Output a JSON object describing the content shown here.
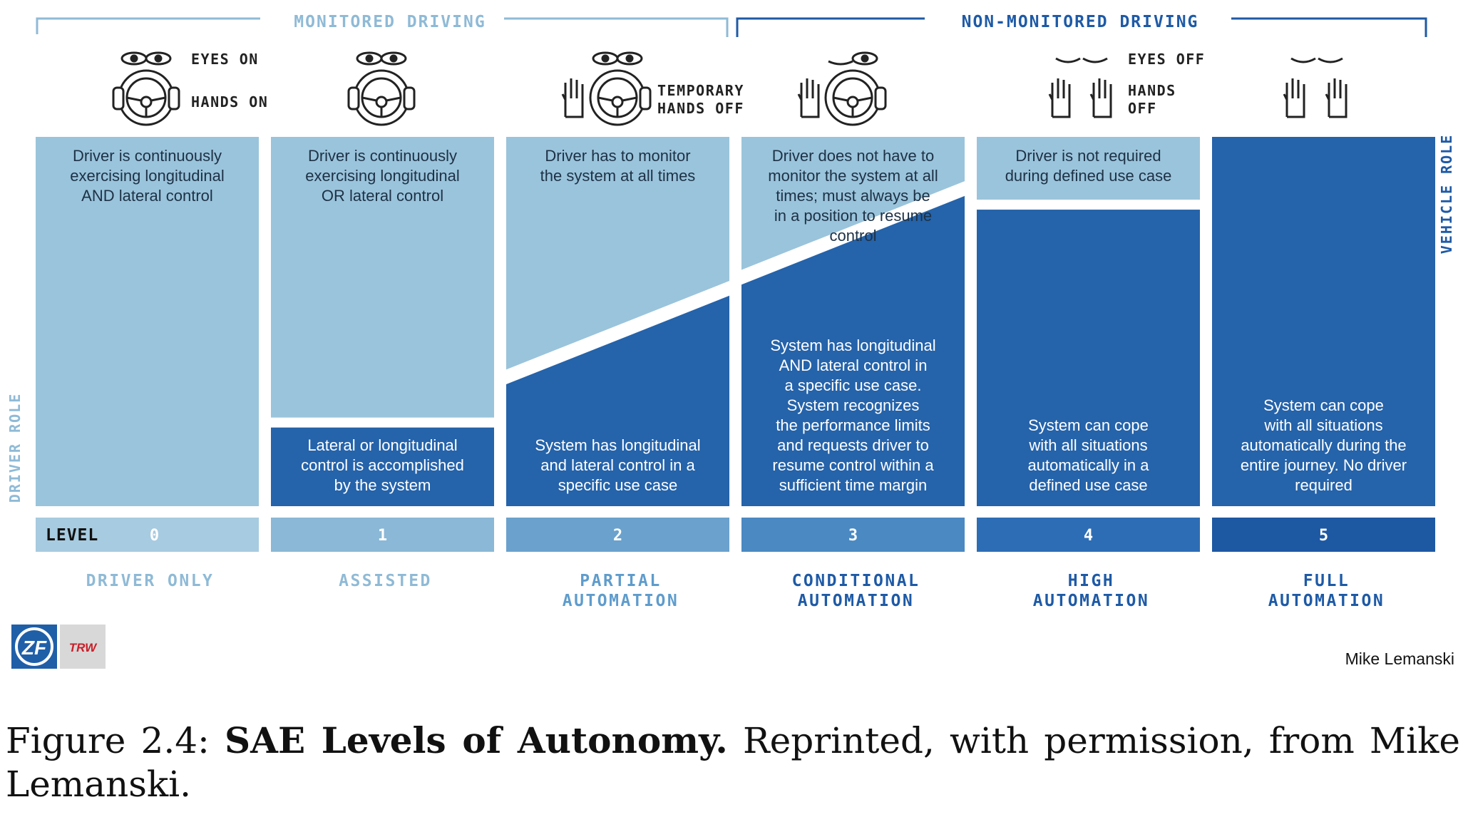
{
  "header": {
    "monitored": "MONITORED DRIVING",
    "non_monitored": "NON-MONITORED DRIVING"
  },
  "icon_labels": {
    "eyes_on": "EYES ON",
    "hands_on": "HANDS ON",
    "temporary_1": "TEMPORARY",
    "temporary_2": "HANDS OFF",
    "eyes_off": "EYES OFF",
    "hands_off_1": "HANDS",
    "hands_off_2": "OFF"
  },
  "side_labels": {
    "driver_role": "DRIVER ROLE",
    "vehicle_role": "VEHICLE ROLE"
  },
  "level_label": "LEVEL",
  "levels": [
    {
      "number": "0",
      "name": [
        "DRIVER ONLY"
      ],
      "driver_text": [
        "Driver is continuously",
        "exercising longitudinal",
        "AND lateral control"
      ],
      "system_text": [],
      "driver_share": 1.0
    },
    {
      "number": "1",
      "name": [
        "ASSISTED"
      ],
      "driver_text": [
        "Driver is continuously",
        "exercising longitudinal",
        "OR lateral control"
      ],
      "system_text": [
        "Lateral or longitudinal",
        "control is accomplished",
        "by the system"
      ],
      "driver_share": 0.76
    },
    {
      "number": "2",
      "name": [
        "PARTIAL",
        "AUTOMATION"
      ],
      "driver_text": [
        "Driver has to monitor",
        "the system at all times"
      ],
      "system_text": [
        "System has longitudinal",
        "and lateral control in a",
        "specific use case"
      ],
      "driver_share": 0.76
    },
    {
      "number": "3",
      "name": [
        "CONDITIONAL",
        "AUTOMATION"
      ],
      "driver_text": [
        "Driver does not have to",
        "monitor the system at all",
        "times; must always be",
        "in a position to resume",
        "control"
      ],
      "system_text": [
        "System has longitudinal",
        "AND lateral control in",
        "a specific use case.",
        "System recognizes",
        "the performance limits",
        "and requests driver to",
        "resume control within a",
        "sufficient time margin"
      ],
      "driver_share": 0.5
    },
    {
      "number": "4",
      "name": [
        "HIGH",
        "AUTOMATION"
      ],
      "driver_text": [
        "Driver is not required",
        "during defined use case"
      ],
      "system_text": [
        "System can cope",
        "with all situations",
        "automatically in a",
        "defined use case"
      ],
      "driver_share": 0.24
    },
    {
      "number": "5",
      "name": [
        "FULL",
        "AUTOMATION"
      ],
      "driver_text": [],
      "system_text": [
        "System can cope",
        "with all situations",
        "automatically during the",
        "entire journey. No driver",
        "required"
      ],
      "driver_share": 0.0
    }
  ],
  "logos": {
    "zf": "ZF",
    "trw": "TRW"
  },
  "credit": "Mike Lemanski",
  "caption": {
    "prefix": "Figure 2.4: ",
    "bold": "SAE Levels of Autonomy.",
    "rest": " Reprinted, with permission, from Mike Lemanski."
  },
  "colors": {
    "driver_light": "#9ac4db",
    "system_dark": "#2563aa",
    "label_light": "#8fbad6",
    "accent_blue": "#1e5aa6",
    "level_shades": [
      "#a7cbe0",
      "#8ab8d6",
      "#6aa2cd",
      "#4a89c2",
      "#2d6db5",
      "#1d58a3"
    ]
  }
}
